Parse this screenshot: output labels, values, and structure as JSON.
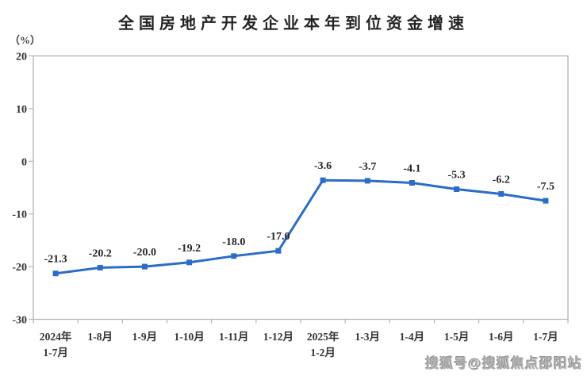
{
  "page": {
    "background": "#ffffff"
  },
  "header": {
    "title": "全国房地产开发企业本年到位资金增速",
    "unit_label": "（%）"
  },
  "watermark": {
    "text": "搜狐号@搜狐焦点邵阳站"
  },
  "chart_data": {
    "type": "line",
    "title": "全国房地产开发企业本年到位资金增速",
    "ylabel": "（%）",
    "xlabel": "",
    "categories": [
      "2024年\n1-7月",
      "1-8月",
      "1-9月",
      "1-10月",
      "1-11月",
      "1-12月",
      "2025年\n1-2月",
      "1-3月",
      "1-4月",
      "1-5月",
      "1-6月",
      "1-7月"
    ],
    "values": [
      -21.3,
      -20.2,
      -20.0,
      -19.2,
      -18.0,
      -17.0,
      -3.6,
      -3.7,
      -4.1,
      -5.3,
      -6.2,
      -7.5
    ],
    "data_labels": [
      "-21.3",
      "-20.2",
      "-20.0",
      "-19.2",
      "-18.0",
      "-17.0",
      "-3.6",
      "-3.7",
      "-4.1",
      "-5.3",
      "-6.2",
      "-7.5"
    ],
    "ylim": [
      -30,
      20
    ],
    "yticks": [
      20,
      10,
      0,
      -10,
      -20,
      -30
    ],
    "grid": false,
    "legend": "none",
    "line_color": "#2B6CC8",
    "marker": "square",
    "axis_color": "#b4b4b4",
    "tick_label_color": "#333333",
    "data_label_color": "#262626"
  }
}
